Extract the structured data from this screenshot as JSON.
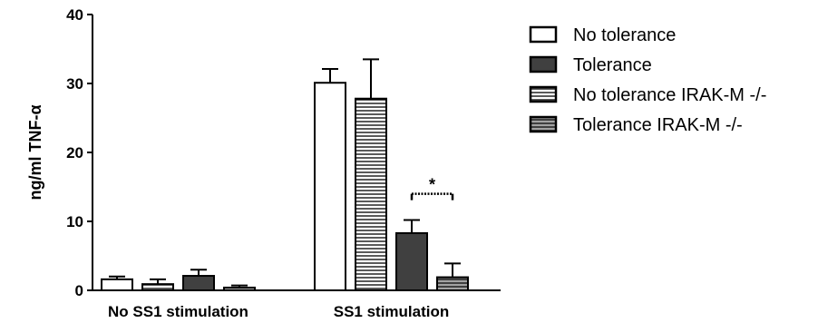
{
  "chart_data": {
    "type": "bar",
    "ylabel": "ng/ml TNF-α",
    "ylim": [
      0,
      40
    ],
    "yticks": [
      0,
      10,
      20,
      30,
      40
    ],
    "groups": [
      "No SS1 stimulation",
      "SS1 stimulation"
    ],
    "series": [
      {
        "name": "No tolerance",
        "fill": "#ffffff",
        "pattern": "none",
        "values": [
          1.6,
          30.1
        ],
        "errors": [
          0.4,
          2.0
        ]
      },
      {
        "name": "No tolerance IRAK-M -/-",
        "fill": "#ffffff",
        "pattern": "horizontal-lines",
        "values": [
          0.9,
          27.8
        ],
        "errors": [
          0.7,
          5.7
        ]
      },
      {
        "name": "Tolerance",
        "fill": "#404040",
        "pattern": "none",
        "values": [
          2.1,
          8.3
        ],
        "errors": [
          0.9,
          1.9
        ]
      },
      {
        "name": "Tolerance IRAK-M -/-",
        "fill": "#404040",
        "pattern": "horizontal-lines",
        "values": [
          0.4,
          1.9
        ],
        "errors": [
          0.3,
          2.0
        ]
      }
    ],
    "legend_order": [
      "No tolerance",
      "Tolerance",
      "No tolerance IRAK-M -/-",
      "Tolerance IRAK-M -/-"
    ],
    "legend_position": "right",
    "annotation": {
      "text": "*",
      "between": [
        "Tolerance",
        "Tolerance IRAK-M -/-"
      ],
      "group": "SS1 stimulation",
      "y_value": 14.0
    },
    "grid": false
  }
}
